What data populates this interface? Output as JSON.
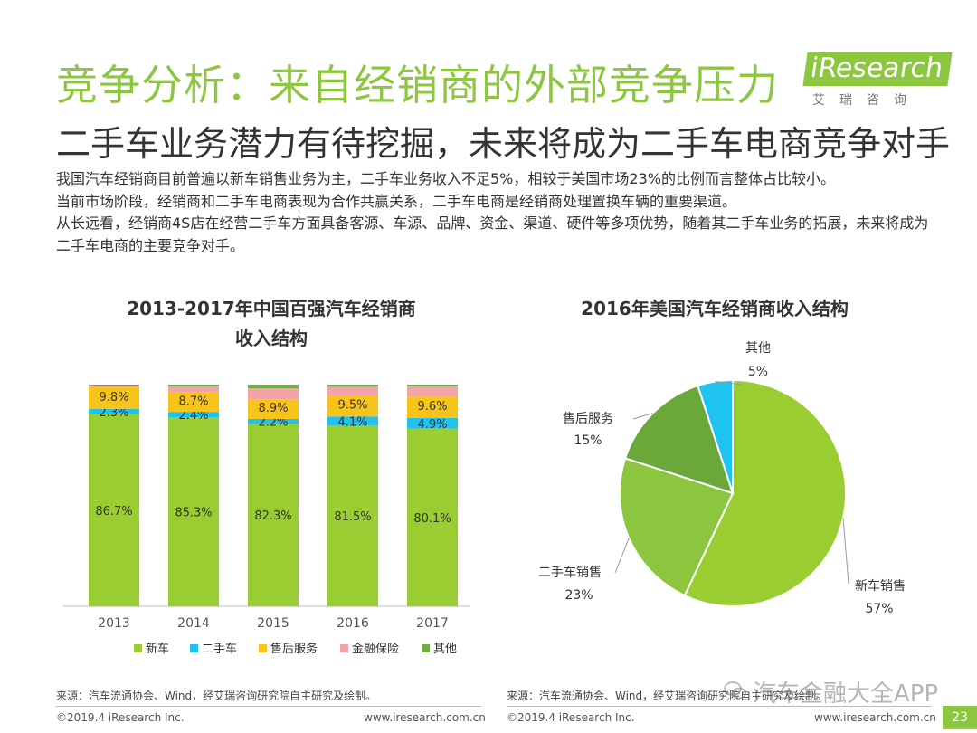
{
  "header": {
    "title": "竞争分析：来自经销商的外部竞争压力",
    "subtitle": "二手车业务潜力有待挖掘，未来将成为二手车电商竞争对手",
    "logo_text": "iResearch",
    "logo_cn": "艾瑞咨询"
  },
  "body": {
    "para1": "我国汽车经销商目前普遍以新车销售业务为主，二手车业务收入不足5%，相较于美国市场23%的比例而言整体占比较小。",
    "para2": "当前市场阶段，经销商和二手车电商表现为合作共赢关系，二手车电商是经销商处理置换车辆的重要渠道。",
    "para3": "从长远看，经销商4S店在经营二手车方面具备客源、车源、品牌、资金、渠道、硬件等多项优势，随着其二手车业务的拓展，未来将成为二手车电商的主要竞争对手。"
  },
  "chart_data": [
    {
      "type": "bar",
      "stacked": true,
      "title_line1": "2013-2017年中国百强汽车经销商",
      "title_line2": "收入结构",
      "categories": [
        "2013",
        "2014",
        "2015",
        "2016",
        "2017"
      ],
      "series": [
        {
          "name": "新车",
          "color": "#9acd32",
          "values": [
            86.7,
            85.3,
            82.3,
            81.5,
            80.1
          ],
          "labels": [
            "86.7%",
            "85.3%",
            "82.3%",
            "81.5%",
            "80.1%"
          ]
        },
        {
          "name": "二手车",
          "color": "#1ec3f0",
          "values": [
            2.3,
            2.4,
            2.2,
            4.1,
            4.9
          ],
          "labels": [
            "2.3%",
            "2.4%",
            "2.2%",
            "4.1%",
            "4.9%"
          ]
        },
        {
          "name": "售后服务",
          "color": "#f9c41a",
          "values": [
            9.8,
            8.7,
            8.9,
            9.5,
            9.6
          ],
          "labels": [
            "9.8%",
            "8.7%",
            "8.9%",
            "9.5%",
            "9.6%"
          ]
        },
        {
          "name": "金融保险",
          "color": "#f4a3a8",
          "values": [
            0.7,
            2.8,
            4.9,
            3.9,
            4.5
          ]
        },
        {
          "name": "其他",
          "color": "#70ad47",
          "values": [
            0.5,
            0.8,
            1.7,
            1.0,
            0.9
          ]
        }
      ],
      "ylim": [
        0,
        100
      ],
      "legend": "bottom"
    },
    {
      "type": "pie",
      "title": "2016年美国汽车经销商收入结构",
      "slices": [
        {
          "name": "新车销售",
          "value": 57,
          "label": "57%",
          "color": "#9acd32"
        },
        {
          "name": "二手车销售",
          "value": 23,
          "label": "23%",
          "color": "#8cc63e"
        },
        {
          "name": "售后服务",
          "value": 15,
          "label": "15%",
          "color": "#6aa83a"
        },
        {
          "name": "其他",
          "value": 5,
          "label": "5%",
          "color": "#1ec3f0"
        }
      ]
    }
  ],
  "sources": {
    "left": "来源：汽车流通协会、Wind，经艾瑞咨询研究院自主研究及绘制。",
    "right": "来源：汽车流通协会、Wind，经艾瑞咨询研究院自主研究及绘制。"
  },
  "footer": {
    "copyright_left": "©2019.4 iResearch Inc.",
    "url_left": "www.iresearch.com.cn",
    "copyright_right": "©2019.4 iResearch Inc.",
    "url_right": "www.iresearch.com.cn",
    "page_number": "23",
    "watermark": "汽车金融大全APP"
  }
}
